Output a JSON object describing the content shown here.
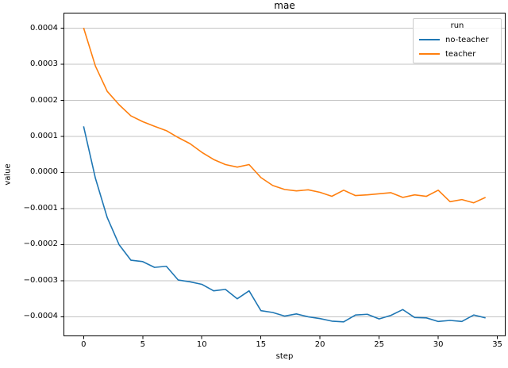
{
  "figure": {
    "title": "mae",
    "xlabel": "step",
    "ylabel": "value"
  },
  "legend": {
    "title": "run"
  },
  "colors": {
    "no_teacher_line": "#1f77b4",
    "teacher_line": "#ff7f0e",
    "gridline": "#c3c3c3",
    "spine": "#000000",
    "legend_border": "#cccccc"
  },
  "chart_data": {
    "type": "line",
    "title": "mae",
    "xlabel": "step",
    "ylabel": "value",
    "legend_title": "run",
    "legend_position": "upper right",
    "grid": "horizontal only",
    "xlim": [
      -1.7,
      35.7
    ],
    "ylim": [
      -0.000454,
      0.000443
    ],
    "x_ticks": [
      0,
      5,
      10,
      15,
      20,
      25,
      30,
      35
    ],
    "x_tick_labels": [
      "0",
      "5",
      "10",
      "15",
      "20",
      "25",
      "30",
      "35"
    ],
    "y_ticks": [
      0.0004,
      0.0003,
      0.0002,
      0.0001,
      0.0,
      -0.0001,
      -0.0002,
      -0.0003,
      -0.0004
    ],
    "y_tick_labels": [
      "0.0004",
      "0.0003",
      "0.0002",
      "0.0001",
      "0.0000",
      "−0.0001",
      "−0.0002",
      "−0.0003",
      "−0.0004"
    ],
    "x": [
      0,
      1,
      2,
      3,
      4,
      5,
      6,
      7,
      8,
      9,
      10,
      11,
      12,
      13,
      14,
      15,
      16,
      17,
      18,
      19,
      20,
      21,
      22,
      23,
      24,
      25,
      26,
      27,
      28,
      29,
      30,
      31,
      32,
      33,
      34
    ],
    "series": [
      {
        "name": "no-teacher",
        "color": "#1f77b4",
        "values": [
          0.000128,
          -1.6e-05,
          -0.000125,
          -0.0002,
          -0.000243,
          -0.000247,
          -0.000263,
          -0.00026,
          -0.000298,
          -0.000303,
          -0.00031,
          -0.000328,
          -0.000324,
          -0.00035,
          -0.000328,
          -0.000383,
          -0.000388,
          -0.000398,
          -0.000392,
          -0.0004,
          -0.000405,
          -0.000412,
          -0.000414,
          -0.000395,
          -0.000393,
          -0.000406,
          -0.000396,
          -0.00038,
          -0.000402,
          -0.000403,
          -0.000413,
          -0.00041,
          -0.000413,
          -0.000395,
          -0.000403
        ]
      },
      {
        "name": "teacher",
        "color": "#ff7f0e",
        "values": [
          0.000401,
          0.000295,
          0.000225,
          0.000188,
          0.000157,
          0.000141,
          0.000128,
          0.000116,
          9.7e-05,
          8e-05,
          5.6e-05,
          3.6e-05,
          2.2e-05,
          1.5e-05,
          2.2e-05,
          -1.4e-05,
          -3.6e-05,
          -4.7e-05,
          -5.1e-05,
          -4.8e-05,
          -5.5e-05,
          -6.6e-05,
          -4.9e-05,
          -6.4e-05,
          -6.2e-05,
          -5.9e-05,
          -5.6e-05,
          -6.9e-05,
          -6.2e-05,
          -6.6e-05,
          -4.9e-05,
          -8.1e-05,
          -7.5e-05,
          -8.4e-05,
          -6.9e-05
        ]
      }
    ]
  }
}
